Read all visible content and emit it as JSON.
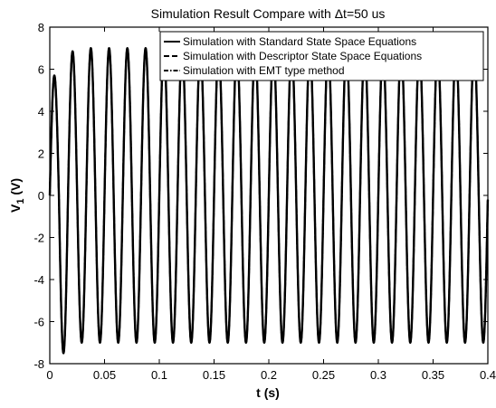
{
  "chart_data": {
    "type": "line",
    "title": "Simulation Result Compare with Δt=50 us",
    "xlabel": "t (s)",
    "ylabel_main": "V",
    "ylabel_sub": "1",
    "ylabel_unit": " (V)",
    "xlim": [
      0,
      0.4
    ],
    "ylim": [
      -8,
      8
    ],
    "x_ticks": [
      "0",
      "0.05",
      "0.1",
      "0.15",
      "0.2",
      "0.25",
      "0.3",
      "0.35",
      "0.4"
    ],
    "y_ticks": [
      "8",
      "6",
      "4",
      "2",
      "0",
      "-2",
      "-4",
      "-6",
      "-8"
    ],
    "grid": false,
    "legend_position": "top-right",
    "signal": {
      "frequency_hz": 60,
      "steady_amplitude": 7.0,
      "first_peak": 5.7,
      "first_trough": -7.5,
      "second_peak": 6.85,
      "end_value": -0.2
    },
    "series": [
      {
        "name": "Simulation with Standard State Space Equations",
        "style": "solid",
        "color": "#000000"
      },
      {
        "name": "Simulation with Descriptor State Space Equations",
        "style": "dashed",
        "color": "#000000"
      },
      {
        "name": "Simulation with EMT type method",
        "style": "dashdot",
        "color": "#000000"
      }
    ]
  }
}
